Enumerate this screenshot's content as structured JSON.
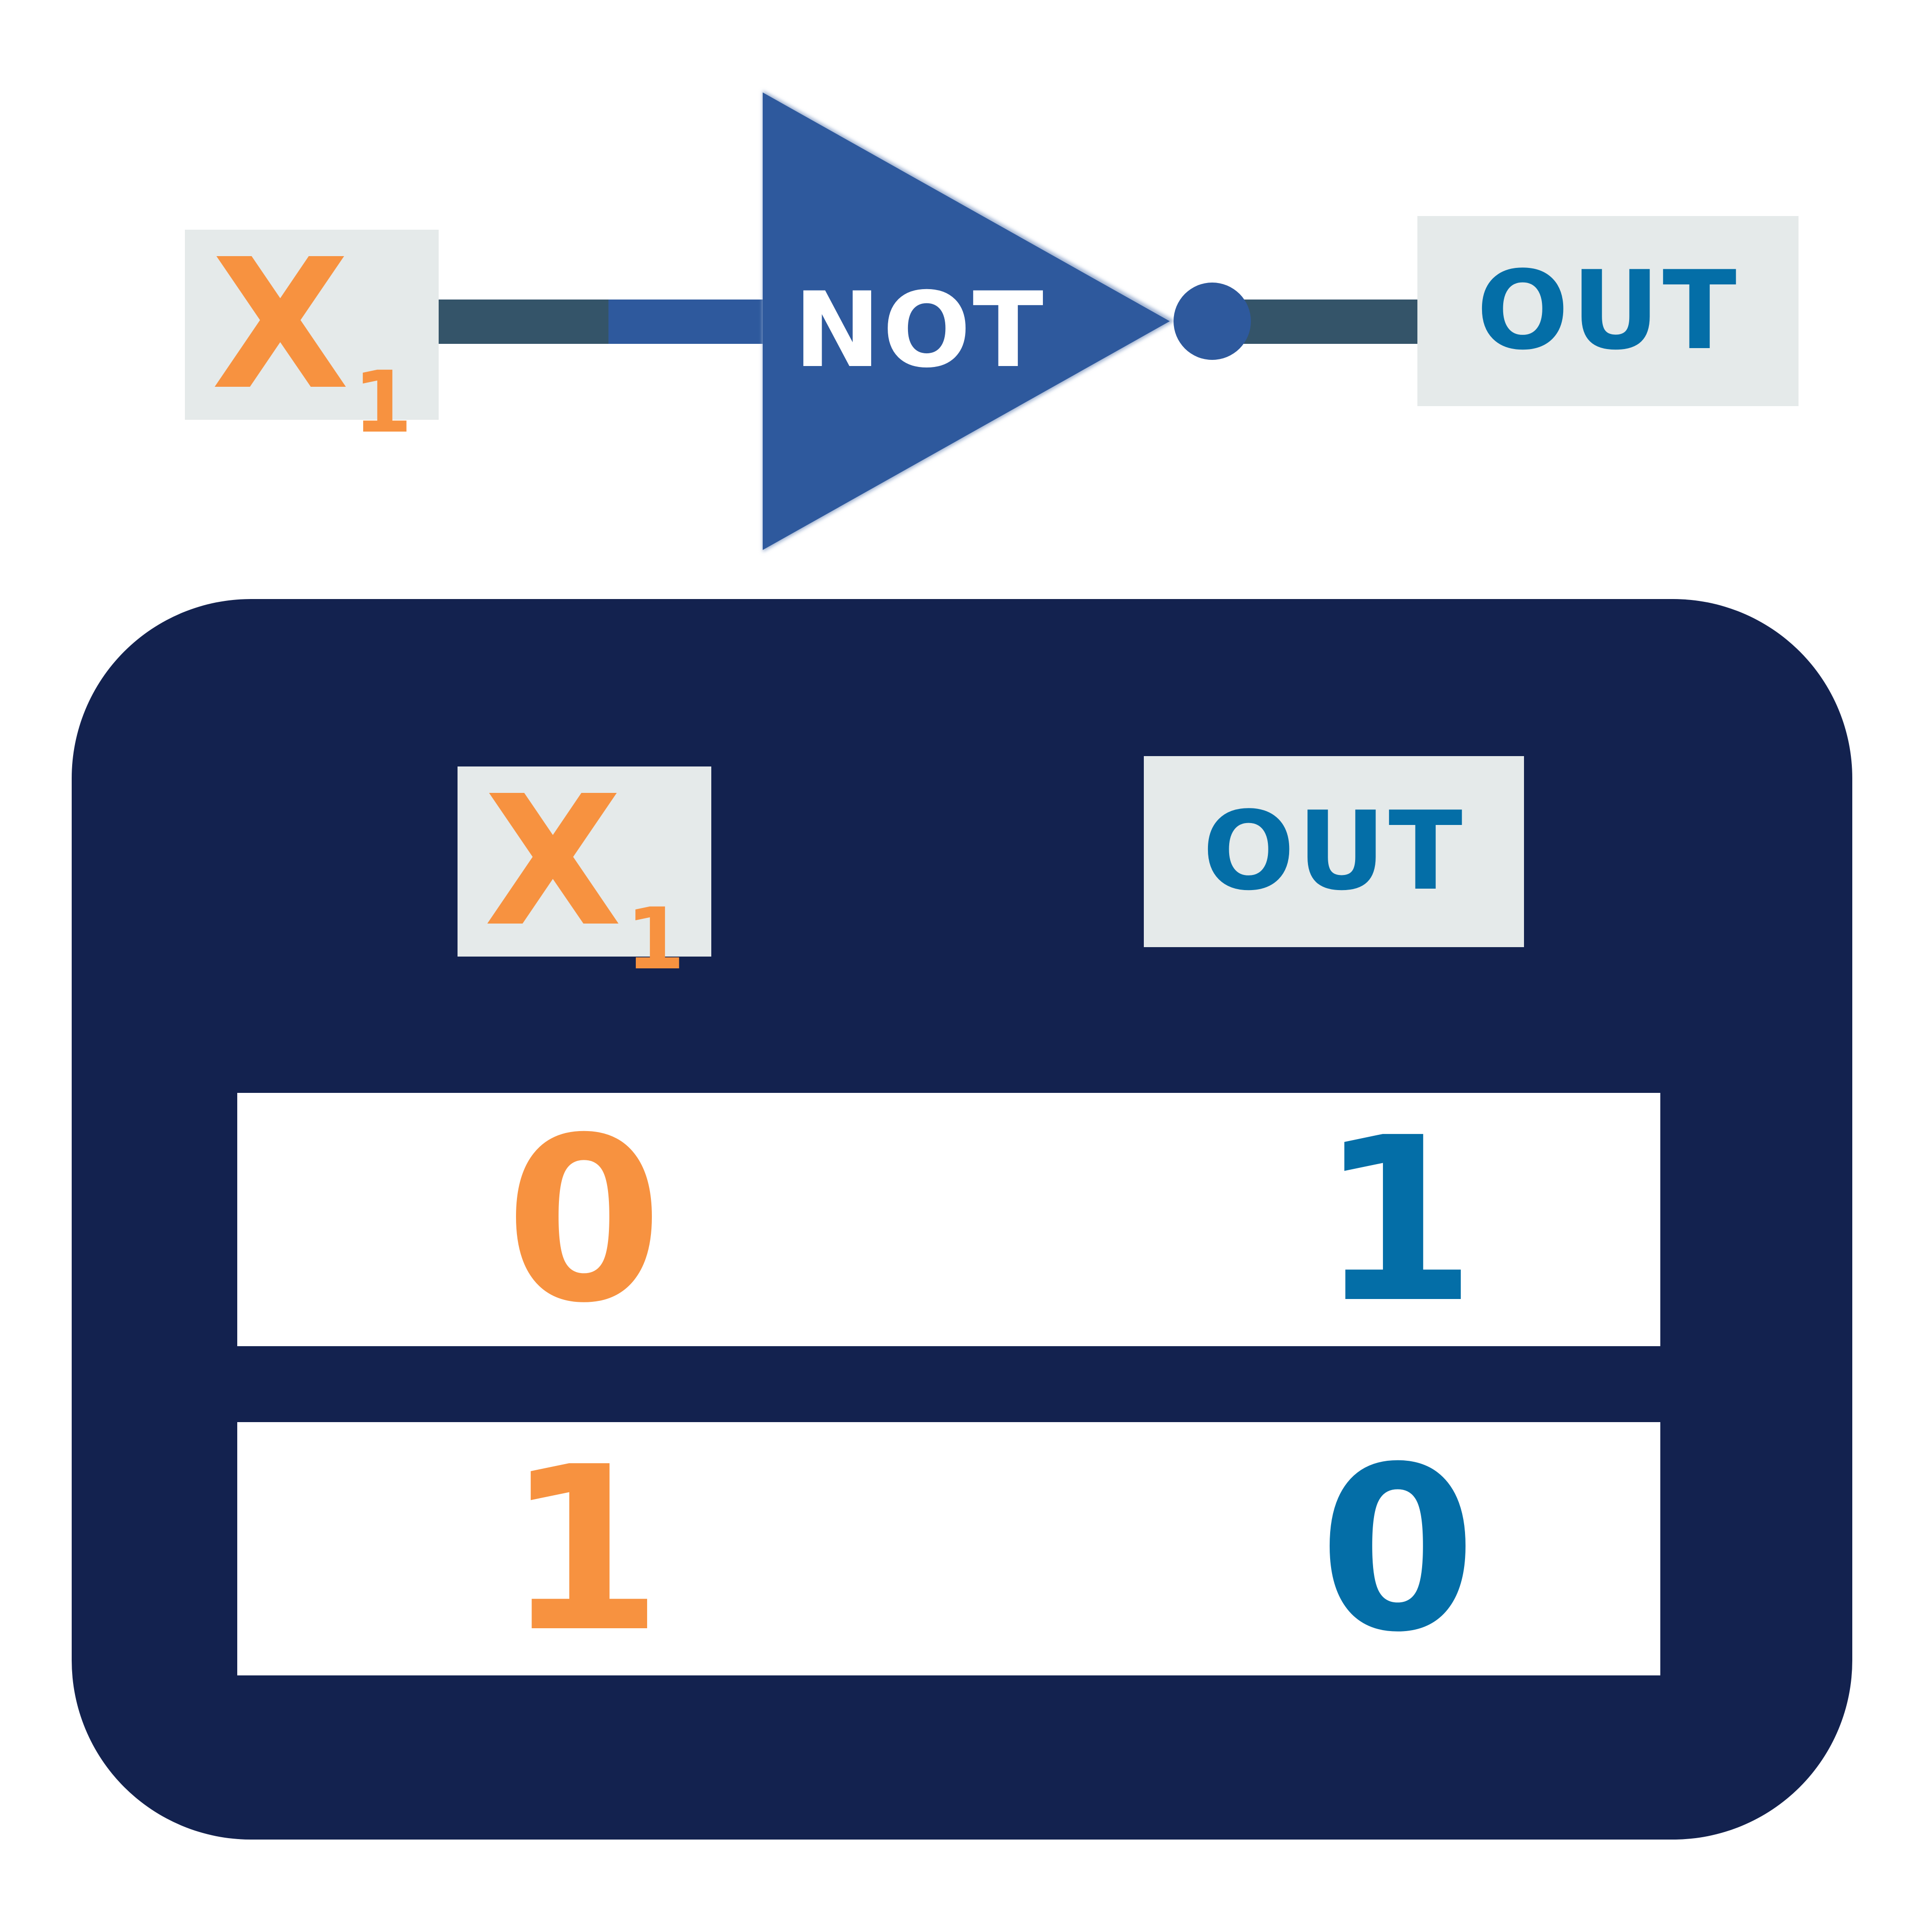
{
  "diagram": {
    "input": {
      "label": "X",
      "subscript": "1"
    },
    "gate": {
      "label": "NOT"
    },
    "output": {
      "label": "OUT"
    }
  },
  "truth_table": {
    "headers": {
      "input": {
        "label": "X",
        "subscript": "1"
      },
      "output": {
        "label": "OUT"
      }
    },
    "rows": [
      {
        "x1": "0",
        "out": "1"
      },
      {
        "x1": "1",
        "out": "0"
      }
    ]
  },
  "colors": {
    "input_orange": "#f79240",
    "output_blue": "#046ea7",
    "gate_blue": "#2e599d",
    "wire_dark": "#345469",
    "panel_navy": "#13224f",
    "label_bg": "#e5eaea"
  }
}
